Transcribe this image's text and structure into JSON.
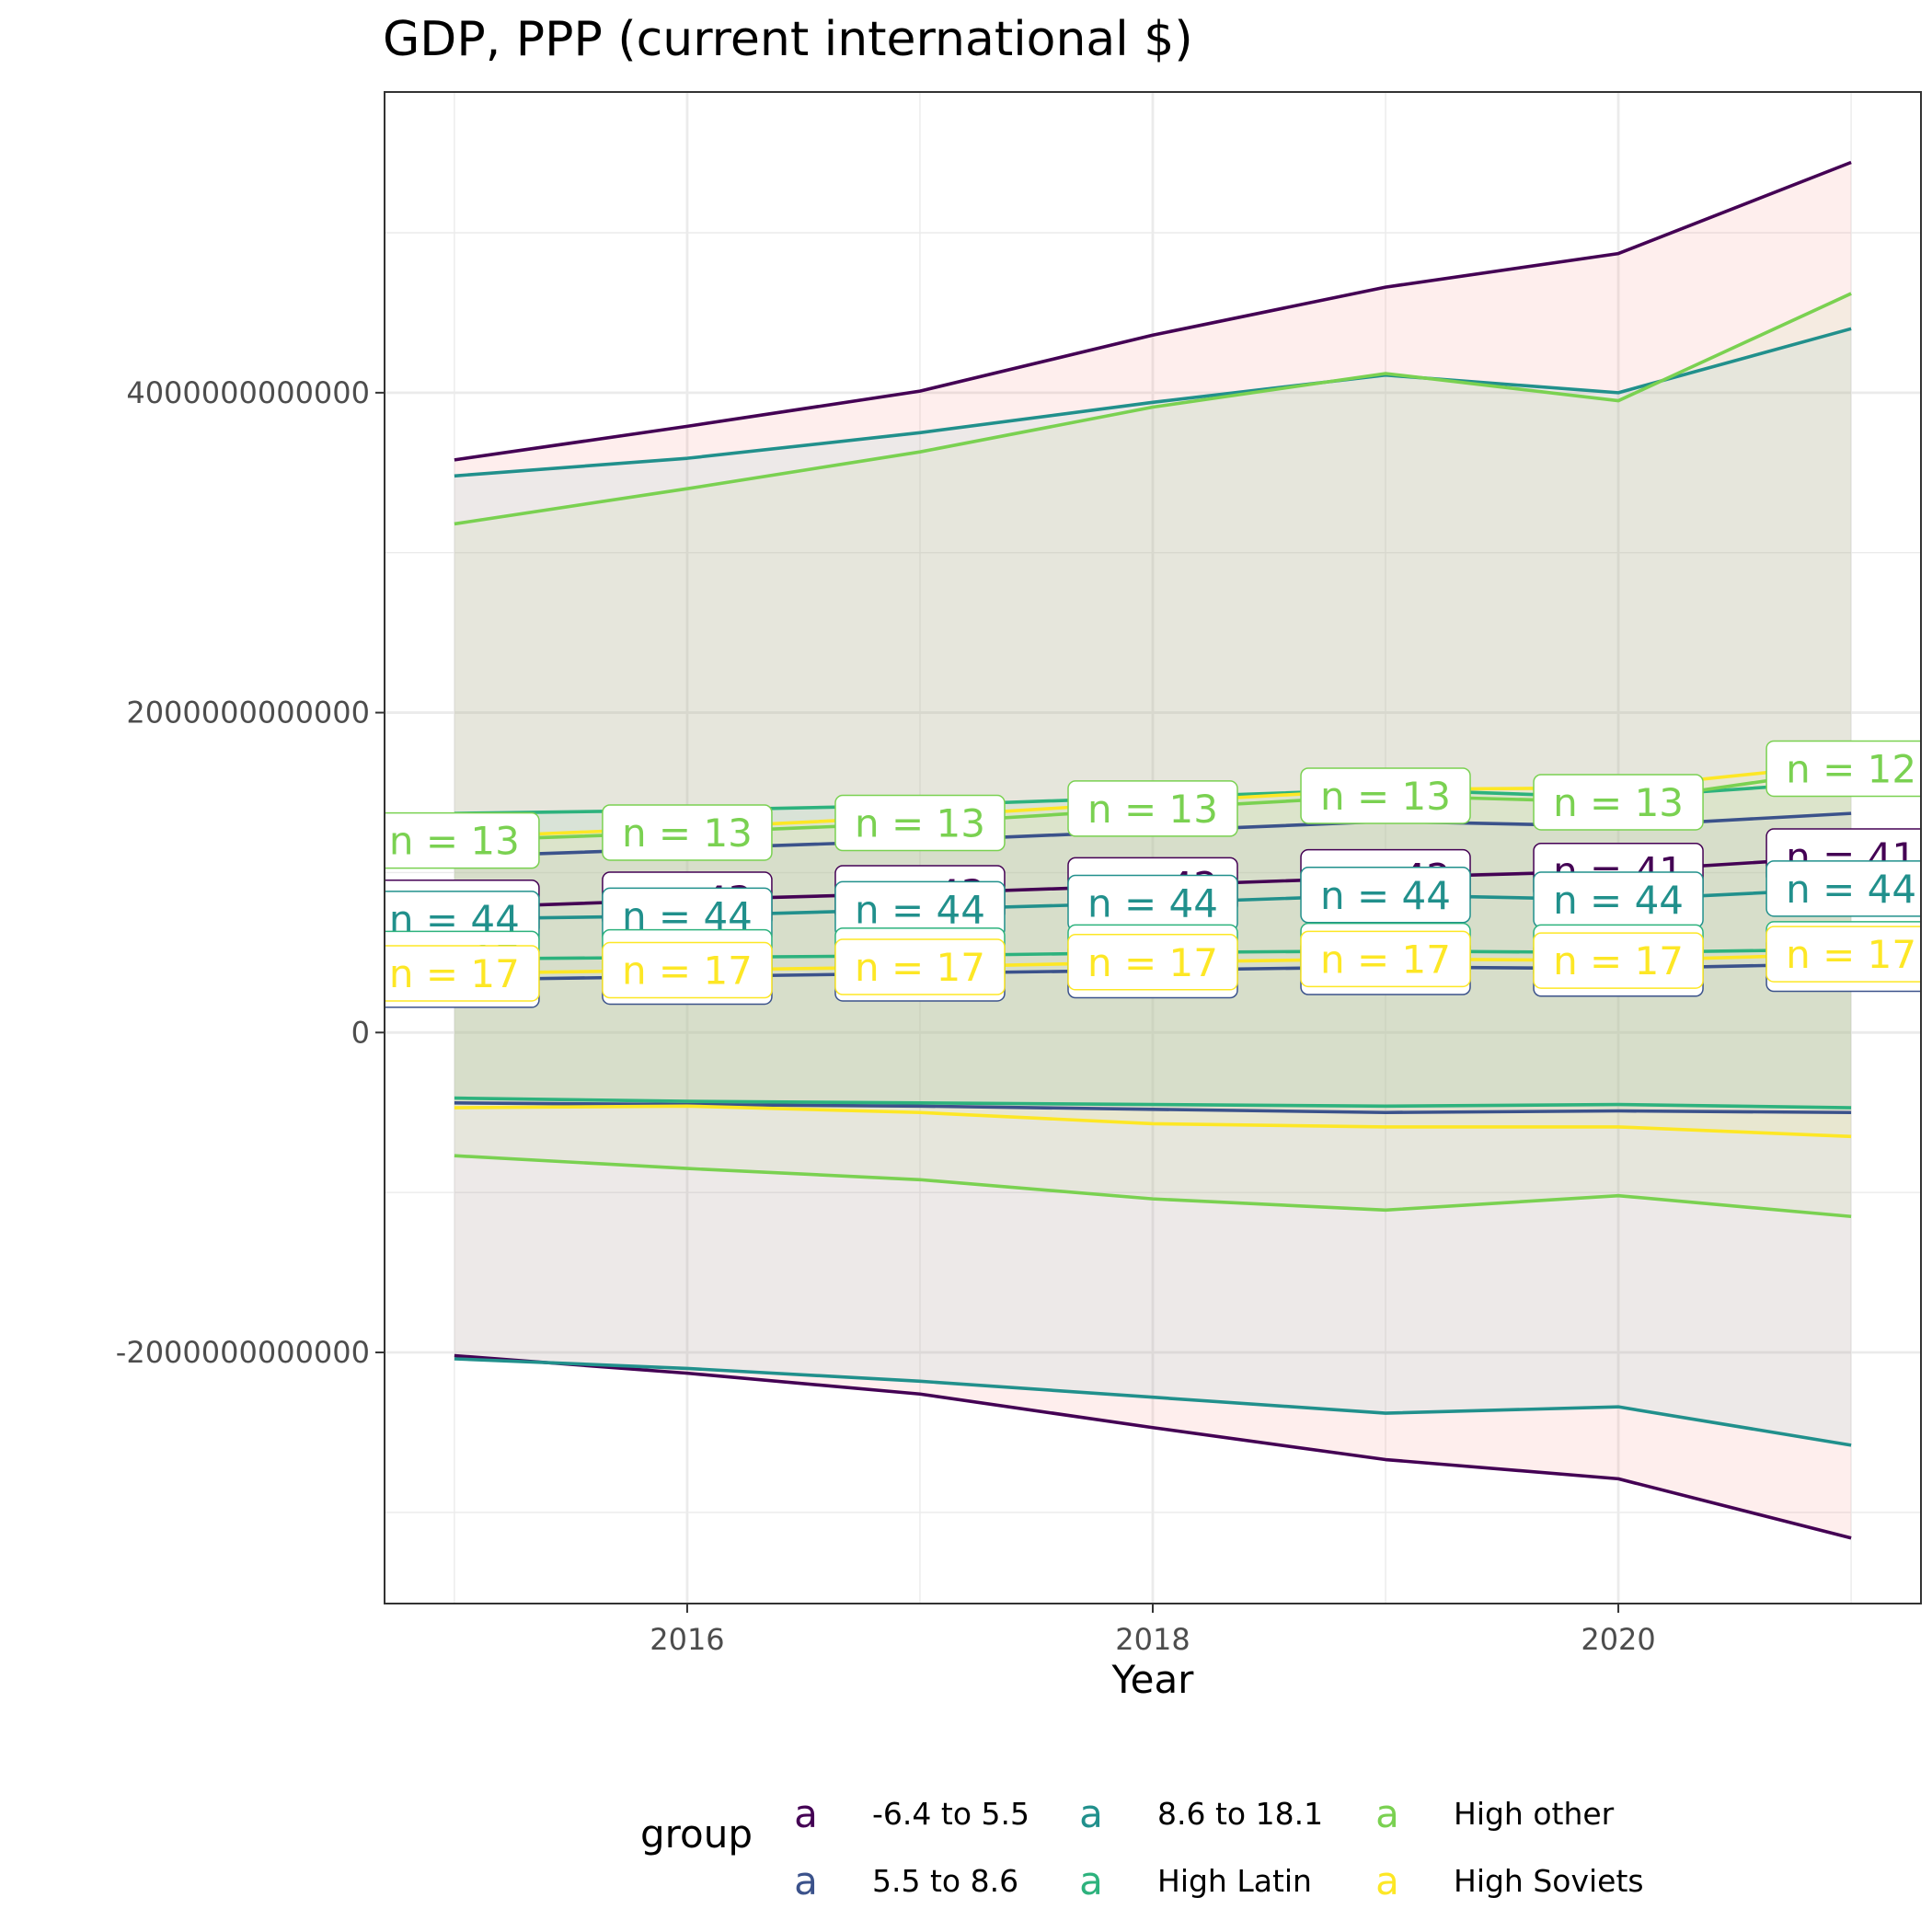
{
  "chart_data": {
    "type": "line",
    "title": "GDP, PPP (current international $)",
    "xlabel": "Year",
    "ylabel": "",
    "x": [
      2015,
      2016,
      2017,
      2018,
      2019,
      2020,
      2021
    ],
    "xlim": [
      2014.7,
      2021.3
    ],
    "ylim": [
      -3570000000000,
      5880000000000
    ],
    "x_ticks": [
      2016,
      2018,
      2020
    ],
    "x_tick_labels": [
      "2016",
      "2018",
      "2020"
    ],
    "y_ticks": [
      -2000000000000,
      0,
      2000000000000,
      4000000000000
    ],
    "y_tick_labels": [
      "-2000000000000",
      "0",
      "2000000000000",
      "4000000000000"
    ],
    "grid": true,
    "legend": {
      "title": "group",
      "position": "bottom",
      "key_glyph": "a",
      "entries": [
        "-6.4 to 5.5",
        "5.5 to 8.6",
        "8.6 to 18.1",
        "High Latin",
        "High other",
        "High Soviets"
      ]
    },
    "series": [
      {
        "name": "-6.4 to 5.5",
        "color": "#440154",
        "fill": "#f8766d",
        "mean": [
          780000000000,
          830000000000,
          870000000000,
          920000000000,
          970000000000,
          1010000000000,
          1100000000000
        ],
        "upper": [
          3580000000000,
          3790000000000,
          4010000000000,
          4360000000000,
          4660000000000,
          4870000000000,
          5440000000000
        ],
        "lower": [
          -2020000000000,
          -2130000000000,
          -2260000000000,
          -2470000000000,
          -2670000000000,
          -2790000000000,
          -3160000000000
        ],
        "labels": [
          "n = 43",
          "n = 43",
          "n = 43",
          "n = 42",
          "n = 42",
          "n = 41",
          "n = 41"
        ]
      },
      {
        "name": "5.5 to 8.6",
        "color": "#3b528b",
        "fill": "#b79fd4",
        "mean": [
          330000000000,
          350000000000,
          370000000000,
          390000000000,
          410000000000,
          400000000000,
          430000000000
        ],
        "upper": [
          1100000000000,
          1150000000000,
          1200000000000,
          1260000000000,
          1320000000000,
          1290000000000,
          1370000000000
        ],
        "lower": [
          -440000000000,
          -450000000000,
          -460000000000,
          -480000000000,
          -500000000000,
          -490000000000,
          -500000000000
        ],
        "labels": [
          "n = 16",
          "n = 16",
          "n = 16",
          "n = 16",
          "n = 16",
          "n = 16",
          "n = 16"
        ]
      },
      {
        "name": "8.6 to 18.1",
        "color": "#21908c",
        "fill": "#74c4c4",
        "mean": [
          710000000000,
          730000000000,
          770000000000,
          810000000000,
          860000000000,
          830000000000,
          900000000000
        ],
        "upper": [
          3480000000000,
          3590000000000,
          3750000000000,
          3940000000000,
          4110000000000,
          4000000000000,
          4400000000000
        ],
        "lower": [
          -2040000000000,
          -2100000000000,
          -2180000000000,
          -2280000000000,
          -2380000000000,
          -2340000000000,
          -2580000000000
        ],
        "labels": [
          "n = 44",
          "n = 44",
          "n = 44",
          "n = 44",
          "n = 44",
          "n = 44",
          "n = 44"
        ]
      },
      {
        "name": "High Latin",
        "color": "#2db27d",
        "fill": "#7fcdbb",
        "mean": [
          460000000000,
          470000000000,
          480000000000,
          500000000000,
          510000000000,
          500000000000,
          520000000000
        ],
        "upper": [
          1370000000000,
          1390000000000,
          1420000000000,
          1470000000000,
          1520000000000,
          1470000000000,
          1570000000000
        ],
        "lower": [
          -410000000000,
          -430000000000,
          -440000000000,
          -450000000000,
          -460000000000,
          -450000000000,
          -470000000000
        ],
        "labels": [
          "n = 17",
          "n = 17",
          "n = 17",
          "n = 17",
          "n = 17",
          "n = 17",
          "n = 17"
        ]
      },
      {
        "name": "High other",
        "color": "#7ad151",
        "fill": "#b6d68d",
        "mean": [
          1200000000000,
          1250000000000,
          1310000000000,
          1400000000000,
          1480000000000,
          1440000000000,
          1650000000000
        ],
        "upper": [
          3180000000000,
          3400000000000,
          3630000000000,
          3910000000000,
          4120000000000,
          3950000000000,
          4620000000000
        ],
        "lower": [
          -770000000000,
          -850000000000,
          -920000000000,
          -1040000000000,
          -1110000000000,
          -1020000000000,
          -1150000000000
        ],
        "labels": [
          "n = 13",
          "n = 13",
          "n = 13",
          "n = 13",
          "n = 13",
          "n = 13",
          "n = 12"
        ]
      },
      {
        "name": "High Soviets",
        "color": "#fde725",
        "fill": "#f3ec7a",
        "mean": [
          370000000000,
          390000000000,
          410000000000,
          440000000000,
          460000000000,
          450000000000,
          490000000000
        ],
        "upper": [
          1220000000000,
          1280000000000,
          1350000000000,
          1440000000000,
          1520000000000,
          1530000000000,
          1680000000000
        ],
        "lower": [
          -470000000000,
          -460000000000,
          -500000000000,
          -570000000000,
          -590000000000,
          -590000000000,
          -650000000000
        ],
        "labels": [
          "n = 17",
          "n = 17",
          "n = 17",
          "n = 17",
          "n = 17",
          "n = 17",
          "n = 17"
        ]
      }
    ]
  }
}
